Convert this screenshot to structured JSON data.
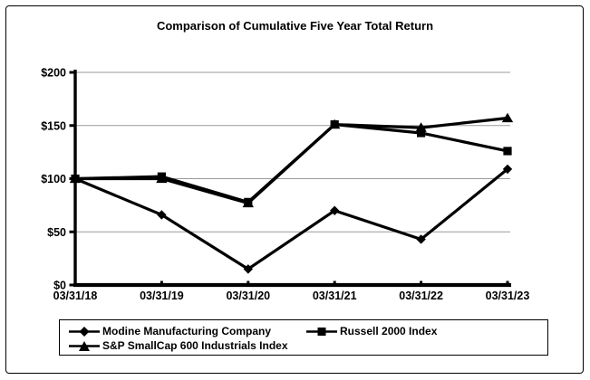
{
  "chart_data": {
    "type": "line",
    "title": "Comparison of Cumulative Five Year Total Return",
    "categories": [
      "03/31/18",
      "03/31/19",
      "03/31/20",
      "03/31/21",
      "03/31/22",
      "03/31/23"
    ],
    "series": [
      {
        "name": "Modine Manufacturing Company",
        "marker": "diamond",
        "values": [
          100,
          66,
          15,
          70,
          43,
          109
        ]
      },
      {
        "name": "Russell 2000 Index",
        "marker": "square",
        "values": [
          100,
          102,
          78,
          151,
          143,
          126
        ]
      },
      {
        "name": "S&P SmallCap 600 Industrials Index",
        "marker": "triangle",
        "values": [
          100,
          100,
          77,
          151,
          148,
          157
        ]
      }
    ],
    "ylim": [
      0,
      200
    ],
    "ytick_step": 50,
    "ytick_prefix": "$",
    "grid": true,
    "legend_position": "bottom",
    "line_color": "#000000",
    "grid_color": "#999999",
    "axis_color": "#000000",
    "background_color": "#ffffff"
  }
}
